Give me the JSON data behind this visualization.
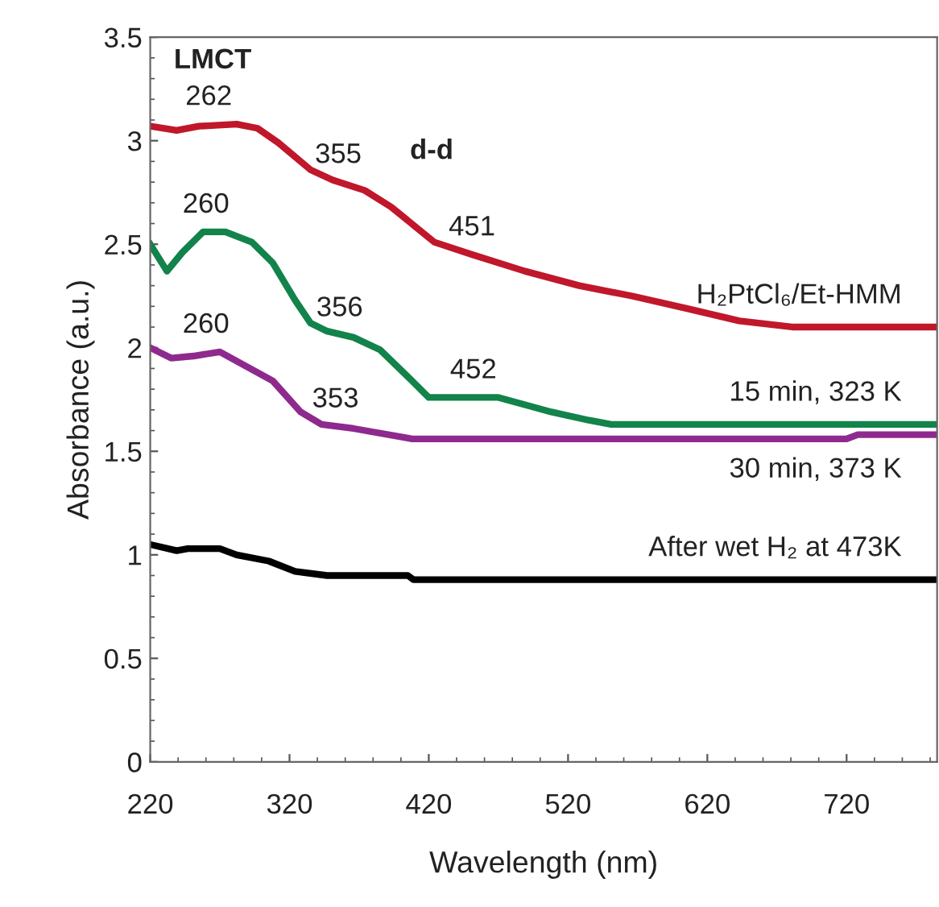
{
  "chart_data": {
    "type": "line",
    "xlabel": "Wavelength (nm)",
    "ylabel": "Absorbance (a.u.)",
    "xlim": [
      220,
      785
    ],
    "xticks": [
      220,
      320,
      420,
      520,
      620,
      720
    ],
    "ylim": [
      0,
      3.5
    ],
    "yticks": [
      0,
      0.5,
      1,
      1.5,
      2,
      2.5,
      3,
      3.5
    ],
    "grid": false,
    "legend": false,
    "marker": "none",
    "line_style": "solid",
    "series": [
      {
        "name": "H₂PtCl₆/Et-HMM",
        "color": "#c0172b",
        "x": [
          220,
          239,
          255,
          282,
          297,
          312,
          335,
          351,
          374,
          393,
          424,
          451,
          489,
          528,
          566,
          605,
          643,
          682,
          785
        ],
        "values": [
          3.07,
          3.05,
          3.07,
          3.08,
          3.06,
          2.99,
          2.86,
          2.81,
          2.76,
          2.68,
          2.51,
          2.45,
          2.37,
          2.3,
          2.25,
          2.19,
          2.13,
          2.1,
          2.1
        ]
      },
      {
        "name": "15 min, 323 K",
        "color": "#12834a",
        "x": [
          220,
          232,
          243,
          258,
          274,
          293,
          308,
          324,
          335,
          347,
          366,
          385,
          405,
          420,
          435,
          470,
          508,
          535,
          551,
          785
        ],
        "values": [
          2.5,
          2.37,
          2.46,
          2.56,
          2.56,
          2.51,
          2.41,
          2.23,
          2.12,
          2.08,
          2.05,
          1.99,
          1.86,
          1.76,
          1.76,
          1.76,
          1.69,
          1.65,
          1.63,
          1.63
        ]
      },
      {
        "name": "30 min, 373 K",
        "color": "#8e2a8e",
        "x": [
          220,
          235,
          251,
          270,
          289,
          308,
          328,
          343,
          366,
          408,
          720,
          728,
          785
        ],
        "values": [
          2.0,
          1.95,
          1.96,
          1.98,
          1.91,
          1.84,
          1.69,
          1.63,
          1.61,
          1.56,
          1.56,
          1.58,
          1.58
        ]
      },
      {
        "name": "After wet H₂ at 473K",
        "color": "#000000",
        "x": [
          220,
          239,
          247,
          270,
          282,
          305,
          324,
          347,
          405,
          409,
          785
        ],
        "values": [
          1.05,
          1.02,
          1.03,
          1.03,
          1.0,
          0.97,
          0.92,
          0.9,
          0.9,
          0.88,
          0.88
        ]
      }
    ],
    "annotations": [
      "LMCT",
      "d-d",
      {
        "text": "262",
        "x": 262,
        "y": 3.08
      },
      {
        "text": "355",
        "x": 355,
        "y": 2.8
      },
      {
        "text": "451",
        "x": 451,
        "y": 2.45
      },
      {
        "text": "260",
        "x": 260,
        "y": 2.56
      },
      {
        "text": "356",
        "x": 356,
        "y": 2.06
      },
      {
        "text": "452",
        "x": 452,
        "y": 1.76
      },
      {
        "text": "260",
        "x": 260,
        "y": 1.98
      },
      {
        "text": "353",
        "x": 353,
        "y": 1.62
      }
    ]
  }
}
